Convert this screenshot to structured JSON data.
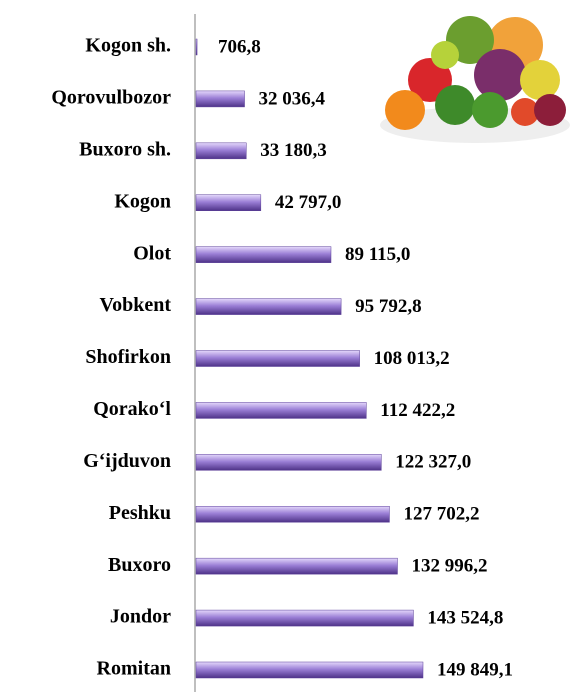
{
  "chart_data": {
    "type": "bar",
    "orientation": "horizontal",
    "categories": [
      "Kogon sh.",
      "Qorovulbozor",
      "Buxoro sh.",
      "Kogon",
      "Olot",
      "Vobkent",
      "Shofirkon",
      "Qorako‘l",
      "G‘ijduvon",
      "Peshku",
      "Buxoro",
      "Jondor",
      "Romitan"
    ],
    "values": [
      706.8,
      32036.4,
      33180.3,
      42797.0,
      89115.0,
      95792.8,
      108013.2,
      112422.2,
      122327.0,
      127702.2,
      132996.2,
      143524.8,
      149849.1
    ],
    "value_labels": [
      "706,8",
      "32 036,4",
      "33 180,3",
      "42 797,0",
      "89 115,0",
      "95 792,8",
      "108 013,2",
      "112 422,2",
      "122 327,0",
      "127 702,2",
      "132 996,2",
      "143 524,8",
      "149 849,1"
    ],
    "color": "#9b7fd6"
  }
}
